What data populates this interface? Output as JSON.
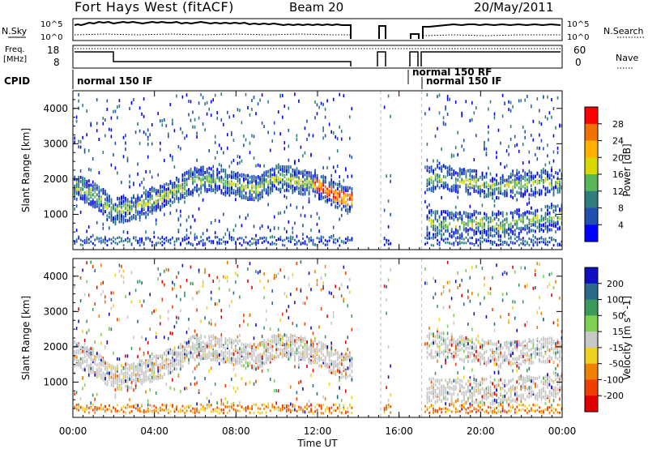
{
  "header": {
    "title": "Fort Hays West (fitACF)",
    "beam": "Beam 20",
    "date": "20/May/2011"
  },
  "params": {
    "nsky_label": "N.Sky",
    "nsearch_label": "N.Search",
    "noise_ticks": [
      "10^5",
      "10^0"
    ],
    "freq_label": "Freq.",
    "freq_unit": "[MHz]",
    "freq_ticks": [
      "18",
      "8"
    ],
    "nave_label": "Nave",
    "nave_ticks": [
      "60",
      "0"
    ],
    "cpid_label": "CPID",
    "cpid_entries": [
      "normal 150 IF",
      "normal 150 RF",
      "normal 150 IF"
    ]
  },
  "chart_data": [
    {
      "type": "heatmap",
      "title": "",
      "xlabel": "Time UT",
      "ylabel": "Slant Range [km]",
      "xlim": [
        0,
        24
      ],
      "ylim": [
        0,
        4500
      ],
      "x_tick_labels": [
        "00:00",
        "04:00",
        "08:00",
        "12:00",
        "16:00",
        "20:00",
        "00:00"
      ],
      "y_tick_labels": [
        "1000",
        "2000",
        "3000",
        "4000"
      ],
      "colorbar": {
        "label": "Power [dB]",
        "ticks": [
          "28",
          "24",
          "20",
          "16",
          "12",
          "8",
          "4"
        ],
        "colors": [
          "#ff0000",
          "#f07000",
          "#ffb000",
          "#d8d800",
          "#58b858",
          "#2e7e7e",
          "#2050b0",
          "#0000ff"
        ]
      },
      "series": [
        {
          "name": "scatter band",
          "hours": [
            0,
            1,
            2,
            3,
            4,
            5,
            6,
            7,
            8,
            9,
            10,
            11,
            12,
            13,
            13.7
          ],
          "range_km": [
            1850,
            1600,
            1150,
            1250,
            1450,
            1700,
            2050,
            2000,
            1900,
            1750,
            2100,
            2000,
            1850,
            1550,
            1450
          ]
        },
        {
          "name": "late band upper",
          "hours": [
            17.3,
            18,
            19,
            20,
            21,
            22,
            23,
            24
          ],
          "range_km": [
            2050,
            2100,
            2000,
            1900,
            1800,
            1900,
            1950,
            1950
          ]
        },
        {
          "name": "late band lower",
          "hours": [
            17.3,
            18,
            19,
            20,
            21,
            22,
            23,
            24
          ],
          "range_km": [
            800,
            800,
            750,
            800,
            750,
            850,
            900,
            1000
          ]
        }
      ]
    },
    {
      "type": "heatmap",
      "title": "",
      "xlabel": "Time UT",
      "ylabel": "Slant Range [km]",
      "xlim": [
        0,
        24
      ],
      "ylim": [
        0,
        4500
      ],
      "x_tick_labels": [
        "00:00",
        "04:00",
        "08:00",
        "12:00",
        "16:00",
        "20:00",
        "00:00"
      ],
      "y_tick_labels": [
        "1000",
        "2000",
        "3000",
        "4000"
      ],
      "colorbar": {
        "label": "Velocity [m s^-1]",
        "ticks": [
          "200",
          "100",
          "50",
          "15",
          "-15",
          "-50",
          "-100",
          "-200"
        ],
        "colors": [
          "#1010c0",
          "#2a6a8a",
          "#3a9a5a",
          "#7dd050",
          "#c8c8c8",
          "#f0d020",
          "#f08000",
          "#f04000",
          "#e00000"
        ]
      },
      "series": [
        {
          "name": "scatter band",
          "hours": [
            0,
            1,
            2,
            3,
            4,
            5,
            6,
            7,
            8,
            9,
            10,
            11,
            12,
            13,
            13.7
          ],
          "range_km": [
            1850,
            1600,
            1150,
            1250,
            1450,
            1700,
            2050,
            2000,
            1900,
            1750,
            2100,
            2000,
            1850,
            1550,
            1450
          ]
        }
      ]
    }
  ]
}
